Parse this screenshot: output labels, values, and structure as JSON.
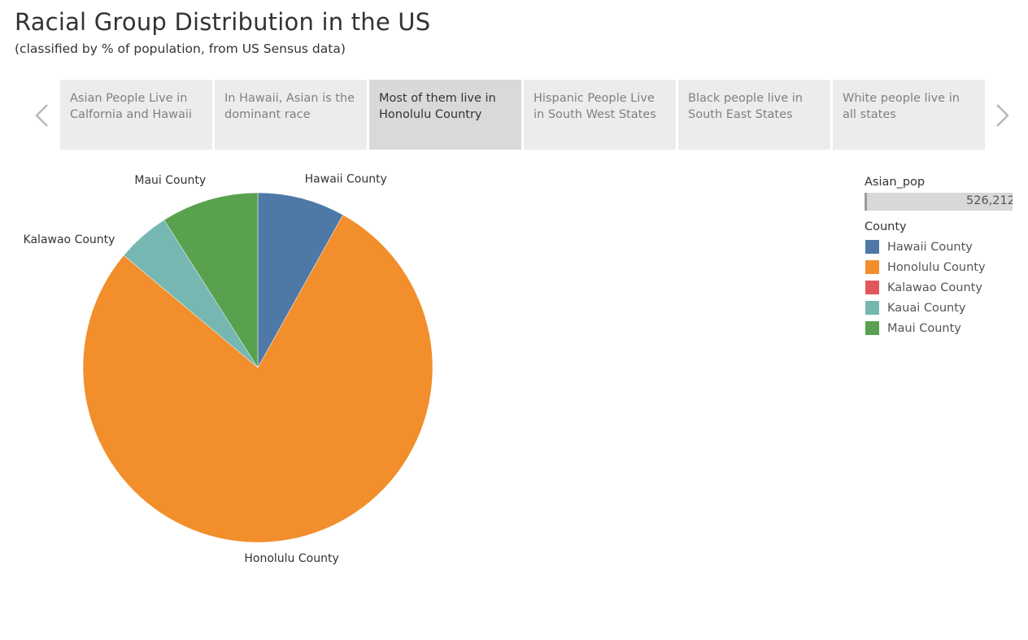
{
  "header": {
    "title": "Racial Group Distribution in the US",
    "subtitle": "(classified by % of population, from US Sensus data)"
  },
  "story": {
    "points": [
      {
        "label": "Asian People Live in Calfornia and Hawaii",
        "active": false
      },
      {
        "label": "In Hawaii, Asian is the dominant race",
        "active": false
      },
      {
        "label": "Most of them live in Honolulu Country",
        "active": true
      },
      {
        "label": "Hispanic People Live in South West States",
        "active": false
      },
      {
        "label": "Black people live in South East States",
        "active": false
      },
      {
        "label": "White people live in all states",
        "active": false
      }
    ],
    "prev_icon": "chevron-left-icon",
    "next_icon": "chevron-right-icon"
  },
  "legend": {
    "size_title": "Asian_pop",
    "size_value": "526,212",
    "color_title": "County",
    "items": [
      {
        "label": "Hawaii County",
        "color": "#4e79a7"
      },
      {
        "label": "Honolulu County",
        "color": "#f28e2b"
      },
      {
        "label": "Kalawao County",
        "color": "#e15759"
      },
      {
        "label": "Kauai County",
        "color": "#76b7b2"
      },
      {
        "label": "Maui County",
        "color": "#59a14f"
      }
    ]
  },
  "chart_data": {
    "type": "pie",
    "categories": [
      "Hawaii County",
      "Honolulu County",
      "Kalawao County",
      "Kauai County",
      "Maui County"
    ],
    "values": [
      8.1,
      78.0,
      0.01,
      4.9,
      9.0
    ],
    "colors": [
      "#4e79a7",
      "#f28e2b",
      "#e15759",
      "#76b7b2",
      "#59a14f"
    ],
    "data_labels": [
      "Hawaii County",
      "Honolulu County",
      "Kalawao County",
      null,
      "Maui County"
    ],
    "title": ""
  }
}
